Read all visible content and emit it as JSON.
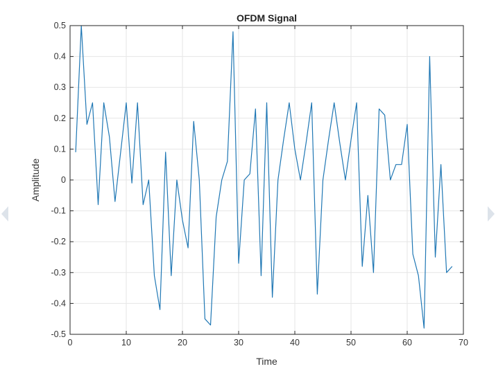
{
  "chart_data": {
    "type": "line",
    "title": "OFDM Signal",
    "xlabel": "Time",
    "ylabel": "Amplitude",
    "xlim": [
      0,
      70
    ],
    "ylim": [
      -0.5,
      0.5
    ],
    "xticks": [
      0,
      10,
      20,
      30,
      40,
      50,
      60,
      70
    ],
    "xtick_labels": [
      "0",
      "10",
      "20",
      "30",
      "40",
      "50",
      "60",
      "70"
    ],
    "yticks": [
      -0.5,
      -0.4,
      -0.3,
      -0.2,
      -0.1,
      0,
      0.1,
      0.2,
      0.3,
      0.4,
      0.5
    ],
    "ytick_labels": [
      "-0.5",
      "-0.4",
      "-0.3",
      "-0.2",
      "-0.1",
      "0",
      "0.1",
      "0.2",
      "0.3",
      "0.4",
      "0.5"
    ],
    "grid": true,
    "series": [
      {
        "x": [
          1,
          2,
          3,
          4,
          5,
          6,
          7,
          8,
          9,
          10,
          11,
          12,
          13,
          14,
          15,
          16,
          17,
          18,
          19,
          20,
          21,
          22,
          23,
          24,
          25,
          26,
          27,
          28,
          29,
          30,
          31,
          32,
          33,
          34,
          35,
          36,
          37,
          38,
          39,
          40,
          41,
          42,
          43,
          44,
          45,
          46,
          47,
          48,
          49,
          50,
          51,
          52,
          53,
          54,
          55,
          56,
          57,
          58,
          59,
          60,
          61,
          62,
          63,
          64,
          65,
          66,
          67,
          68
        ],
        "y": [
          0.09,
          0.5,
          0.18,
          0.25,
          -0.08,
          0.25,
          0.14,
          -0.07,
          0.09,
          0.25,
          -0.01,
          0.25,
          -0.08,
          0.0,
          -0.31,
          -0.42,
          0.09,
          -0.31,
          0.0,
          -0.13,
          -0.22,
          0.19,
          0.0,
          -0.45,
          -0.47,
          -0.12,
          0.0,
          0.06,
          0.48,
          -0.27,
          0.0,
          0.02,
          0.23,
          -0.31,
          0.25,
          -0.38,
          0.0,
          0.13,
          0.25,
          0.1,
          0.0,
          0.12,
          0.25,
          -0.37,
          0.0,
          0.13,
          0.25,
          0.12,
          0.0,
          0.13,
          0.25,
          -0.28,
          -0.05,
          -0.3,
          0.23,
          0.21,
          0.0,
          0.05,
          0.05,
          0.18,
          -0.24,
          -0.31,
          -0.48,
          0.4,
          -0.25,
          0.05,
          -0.3,
          -0.28
        ]
      }
    ]
  },
  "colors": {
    "series_line": "#1f77b4",
    "grid": "#e6e6e6",
    "axes": "#262626",
    "edge_marks": "#dde3ea"
  }
}
